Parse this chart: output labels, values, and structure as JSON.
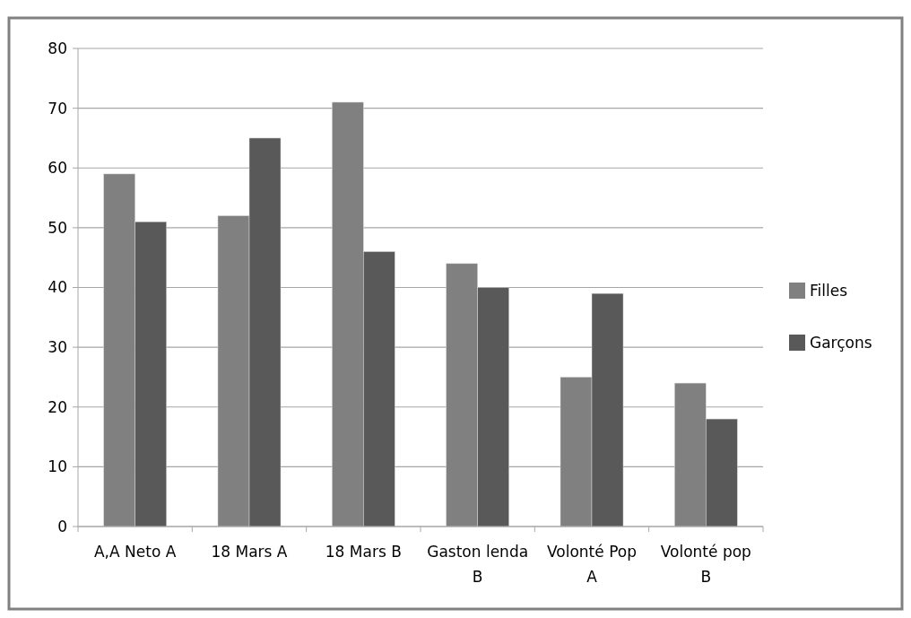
{
  "chart_data": {
    "type": "bar",
    "categories": [
      "A,A Neto A",
      "18 Mars A",
      "18  Mars B",
      "Gaston lenda B",
      "Volonté Pop A",
      "Volonté pop B"
    ],
    "series": [
      {
        "name": "Filles",
        "color": "#808080",
        "values": [
          59,
          52,
          71,
          44,
          25,
          24
        ]
      },
      {
        "name": "Garçons",
        "color": "#595959",
        "values": [
          51,
          65,
          46,
          40,
          39,
          18
        ]
      }
    ],
    "ylim": [
      0,
      80
    ],
    "yticks": [
      0,
      10,
      20,
      30,
      40,
      50,
      60,
      70,
      80
    ],
    "grid": "y",
    "legend": "right"
  }
}
